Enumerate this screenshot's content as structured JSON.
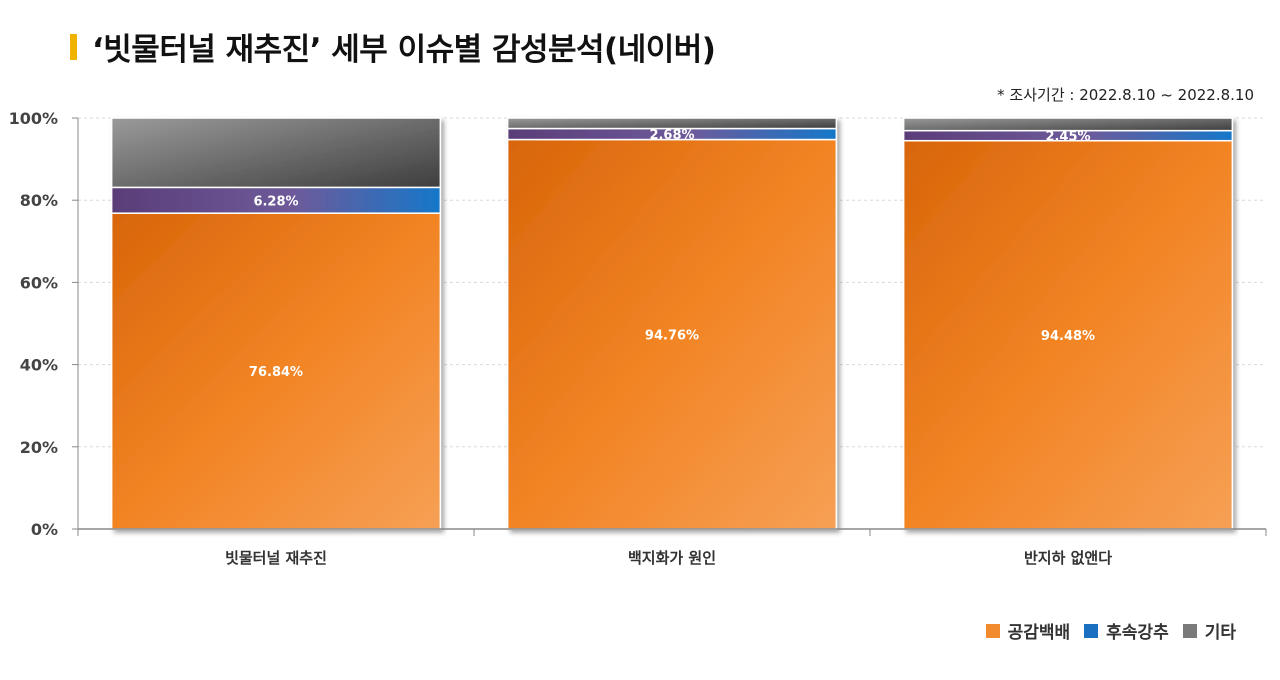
{
  "title": "‘빗물터널 재추진’ 세부 이슈별 감성분석(네이버)",
  "period": "* 조사기간 : 2022.8.10 ~ 2022.8.10",
  "colors": {
    "title_marker": "#f0b400",
    "공감백배": "#f28a2e",
    "후속강추": "#1a6fc0",
    "기타": "#7a7a7a"
  },
  "chart_data": {
    "type": "bar",
    "stacked": true,
    "categories": [
      "빗물터널 재추진",
      "백지화가 원인",
      "반지하 없앤다"
    ],
    "series": [
      {
        "name": "공감백배",
        "values": [
          76.84,
          94.76,
          94.48
        ]
      },
      {
        "name": "후속강추",
        "values": [
          6.28,
          2.68,
          2.45
        ]
      },
      {
        "name": "기타",
        "values": [
          16.88,
          2.56,
          3.07
        ]
      }
    ],
    "data_labels": [
      [
        "76.84%",
        "94.76%",
        "94.48%"
      ],
      [
        "6.28%",
        "2.68%",
        "2.45%"
      ]
    ],
    "ylim": [
      0,
      100
    ],
    "yticks": [
      "0%",
      "20%",
      "40%",
      "60%",
      "80%",
      "100%"
    ],
    "grid": true,
    "legend": "bottom-right"
  }
}
